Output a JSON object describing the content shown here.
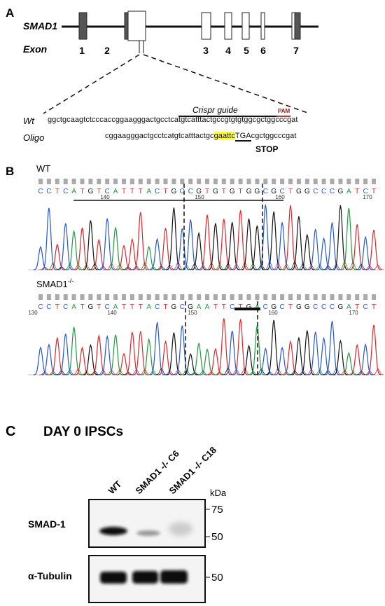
{
  "panel_a": {
    "label": "A",
    "gene": "SMAD1",
    "exon_label": "Exon",
    "exon_numbers": [
      "1",
      "2",
      "3",
      "4",
      "5",
      "6",
      "7"
    ],
    "wt_label": "Wt",
    "wt_sequence": "ggctgcaagtctcccaccggaagggactgcctcatgtcatttactgccgtgtgtggcgctggcccgat",
    "crispr_guide": "Crispr guide",
    "pam": "PAM",
    "oligo_label": "Oligo",
    "oligo_sequence": {
      "prefix": "cggaagggactgcctcatgtcatttactgc",
      "insert": "gaattc",
      "stop_codon": "TGA",
      "suffix": "cgctggcccgat"
    },
    "stop": "STOP"
  },
  "panel_b": {
    "label": "B",
    "traces": [
      {
        "name": "WT",
        "bases": [
          "C",
          "C",
          "T",
          "C",
          "A",
          "T",
          "G",
          "T",
          "C",
          "A",
          "T",
          "T",
          "T",
          "A",
          "C",
          "T",
          "G",
          "C",
          "C",
          "G",
          "T",
          "G",
          "T",
          "G",
          "T",
          "G",
          "G",
          "C",
          "G",
          "C",
          "T",
          "G",
          "G",
          "C",
          "C",
          "C",
          "G",
          "A",
          "T",
          "C",
          "T"
        ],
        "positions": [
          "140",
          "150",
          "160",
          "170"
        ]
      },
      {
        "name": "SMAD1",
        "superscript": "-/-",
        "bases": [
          "C",
          "C",
          "T",
          "C",
          "A",
          "T",
          "G",
          "T",
          "C",
          "A",
          "T",
          "T",
          "T",
          "A",
          "C",
          "T",
          "G",
          "C",
          "G",
          "A",
          "A",
          "T",
          "T",
          "C",
          "T",
          "G",
          "A",
          "C",
          "G",
          "C",
          "T",
          "G",
          "G",
          "C",
          "C",
          "C",
          "G",
          "A",
          "T",
          "C",
          "T"
        ],
        "positions": [
          "130",
          "140",
          "150",
          "160",
          "170"
        ]
      }
    ]
  },
  "panel_c": {
    "label": "C",
    "title": "DAY 0 IPSCs",
    "lanes": [
      "WT",
      "SMAD1 -/- C6",
      "SMAD1 -/- C18"
    ],
    "kda": "kDa",
    "markers_smad": [
      "75",
      "50"
    ],
    "markers_tubulin": [
      "50"
    ],
    "proteins": [
      "SMAD-1",
      "α-Tubulin"
    ]
  }
}
